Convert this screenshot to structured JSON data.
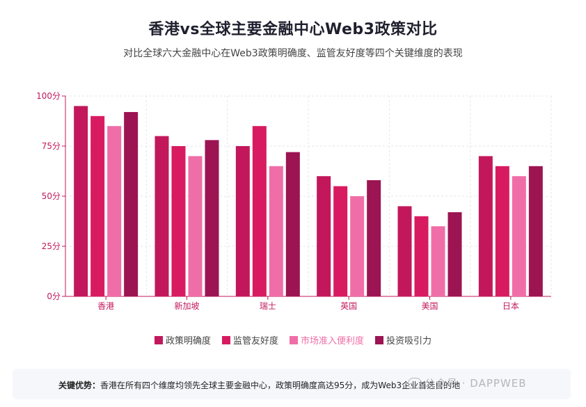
{
  "header": {
    "title": "香港vs全球主要金融中心Web3政策对比",
    "subtitle": "对比全球六大金融中心在Web3政策明确度、监管友好度等四个关键维度的表现"
  },
  "chart_data": {
    "type": "bar",
    "categories": [
      "香港",
      "新加坡",
      "瑞士",
      "英国",
      "美国",
      "日本"
    ],
    "series": [
      {
        "name": "政策明确度",
        "color": "#c2185b",
        "values": [
          95,
          80,
          75,
          60,
          45,
          70
        ]
      },
      {
        "name": "监管友好度",
        "color": "#d81b60",
        "values": [
          90,
          75,
          85,
          55,
          40,
          65
        ]
      },
      {
        "name": "市场准入便利度",
        "color": "#f06ea8",
        "values": [
          85,
          70,
          65,
          50,
          35,
          60
        ]
      },
      {
        "name": "投资吸引力",
        "color": "#9c1452",
        "values": [
          92,
          78,
          72,
          58,
          42,
          65
        ]
      }
    ],
    "ylim": [
      0,
      100
    ],
    "yticks": [
      0,
      25,
      50,
      75,
      100
    ],
    "ytick_labels": [
      "0分",
      "25分",
      "50分",
      "75分",
      "100分"
    ],
    "grid": true,
    "legend_position": "bottom-center"
  },
  "note": {
    "label": "关键优势：",
    "text": "香港在所有四个维度均领先全球主要金融中心，政策明确度高达95分，成为Web3企业首选目的地"
  },
  "watermark": {
    "text": "公众号 · DAPPWEB"
  }
}
